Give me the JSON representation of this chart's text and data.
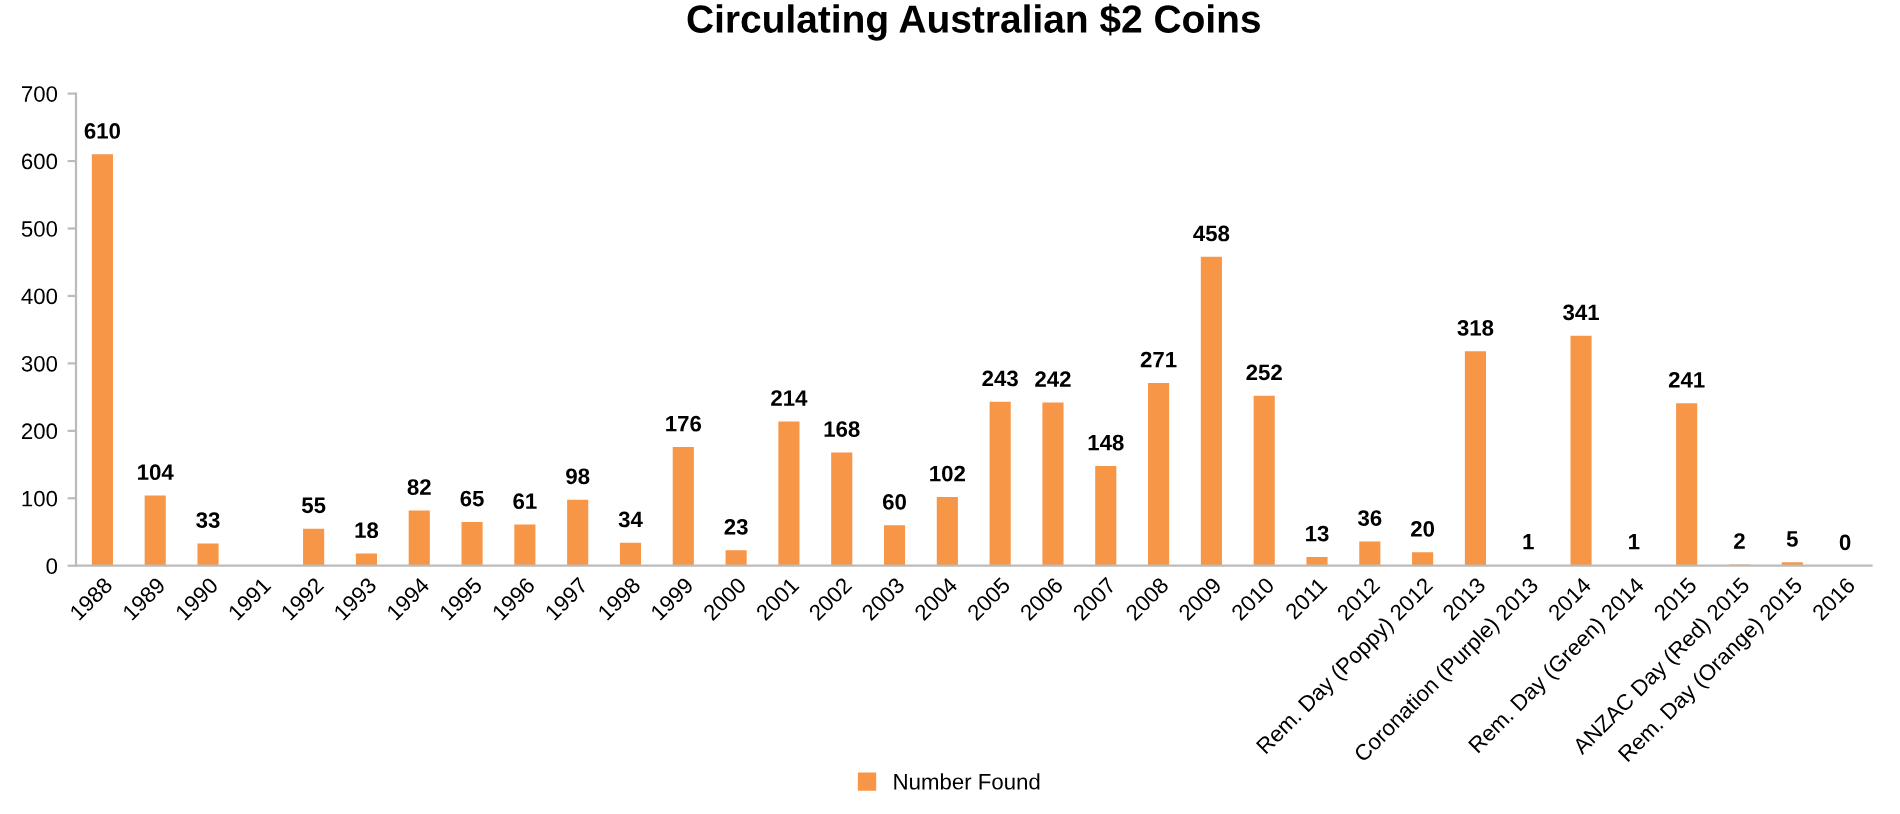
{
  "chart_data": {
    "type": "bar",
    "title": "Circulating Australian $2 Coins",
    "categories": [
      "1988",
      "1989",
      "1990",
      "1991",
      "1992",
      "1993",
      "1994",
      "1995",
      "1996",
      "1997",
      "1998",
      "1999",
      "2000",
      "2001",
      "2002",
      "2003",
      "2004",
      "2005",
      "2006",
      "2007",
      "2008",
      "2009",
      "2010",
      "2011",
      "2012",
      "Rem. Day (Poppy) 2012",
      "2013",
      "Coronation (Purple) 2013",
      "2014",
      "Rem. Day (Green) 2014",
      "2015",
      "ANZAC Day (Red) 2015",
      "Rem. Day (Orange) 2015",
      "2016"
    ],
    "series": [
      {
        "name": "Number Found",
        "color": "#f79646",
        "values": [
          610,
          104,
          33,
          null,
          55,
          18,
          82,
          65,
          61,
          98,
          34,
          176,
          23,
          214,
          168,
          60,
          102,
          243,
          242,
          148,
          271,
          458,
          252,
          13,
          36,
          20,
          318,
          1,
          341,
          1,
          241,
          2,
          5,
          0
        ]
      }
    ],
    "ylim": [
      0,
      700
    ],
    "yticks": [
      0,
      100,
      200,
      300,
      400,
      500,
      600,
      700
    ],
    "grid": false,
    "legend": "bottom",
    "data_labels": true
  }
}
